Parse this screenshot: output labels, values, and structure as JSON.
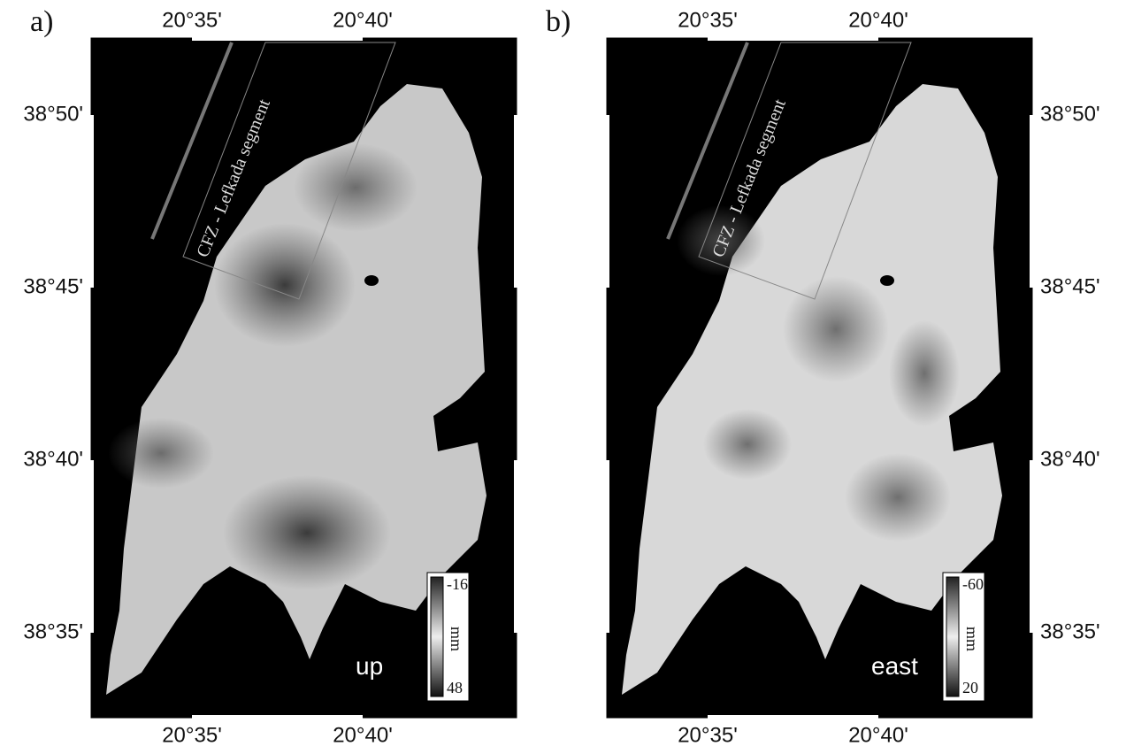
{
  "panels": [
    {
      "label": "a)",
      "top_ticks": [
        "20°35'",
        "20°40'"
      ],
      "bottom_ticks": [
        "20°35'",
        "20°40'"
      ],
      "lat_ticks": [
        "38°50'",
        "38°45'",
        "38°40'",
        "38°35'"
      ],
      "fault_label": "CFZ - Lefkada segment",
      "component": "up",
      "colorbar": {
        "top": "-16",
        "unit": "mm",
        "bottom": "48"
      }
    },
    {
      "label": "b)",
      "top_ticks": [
        "20°35'",
        "20°40'"
      ],
      "bottom_ticks": [
        "20°35'",
        "20°40'"
      ],
      "lat_ticks": [
        "38°50'",
        "38°45'",
        "38°40'",
        "38°35'"
      ],
      "fault_label": "CFZ - Lefkada segment",
      "component": "east",
      "colorbar": {
        "top": "-60",
        "unit": "mm",
        "bottom": "20"
      }
    }
  ]
}
